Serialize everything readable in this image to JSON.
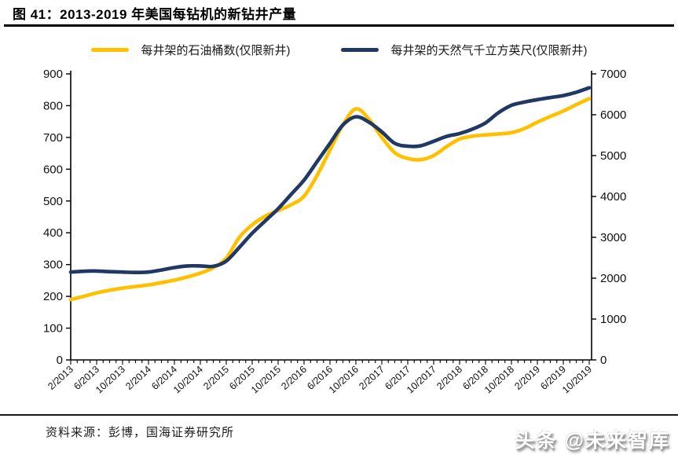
{
  "header": {
    "title": "图 41：2013-2019 年美国每钻机的新钻井产量"
  },
  "legend": [
    {
      "label": "每井架的石油桶数(仅限新井)",
      "color": "#FFC000"
    },
    {
      "label": "每井架的天然气千立方英尺(仅限新井)",
      "color": "#1F3864"
    }
  ],
  "footer": {
    "source": "资料来源：彭博，国海证券研究所",
    "watermark": "头条 @未来智库"
  },
  "chart_data": {
    "type": "line",
    "title": "2013-2019 年美国每钻机的新钻井产量",
    "grid": false,
    "legend_position": "top",
    "x_step_months": 2,
    "x": [
      "2/2013",
      "4/2013",
      "6/2013",
      "8/2013",
      "10/2013",
      "12/2013",
      "2/2014",
      "4/2014",
      "6/2014",
      "8/2014",
      "10/2014",
      "12/2014",
      "2/2015",
      "4/2015",
      "6/2015",
      "8/2015",
      "10/2015",
      "12/2015",
      "2/2016",
      "4/2016",
      "6/2016",
      "8/2016",
      "10/2016",
      "12/2016",
      "2/2017",
      "4/2017",
      "6/2017",
      "8/2017",
      "10/2017",
      "12/2017",
      "2/2018",
      "4/2018",
      "6/2018",
      "8/2018",
      "10/2018",
      "12/2018",
      "2/2019",
      "4/2019",
      "6/2019",
      "8/2019",
      "10/2019"
    ],
    "x_tick_labels": [
      "2/2013",
      "6/2013",
      "10/2013",
      "2/2014",
      "6/2014",
      "10/2014",
      "2/2015",
      "6/2015",
      "10/2015",
      "2/2016",
      "6/2016",
      "10/2016",
      "2/2017",
      "6/2017",
      "10/2017",
      "2/2018",
      "6/2018",
      "10/2018",
      "2/2019",
      "6/2019",
      "10/2019"
    ],
    "series": [
      {
        "name": "每井架的石油桶数(仅限新井)",
        "axis": "left",
        "color": "#FFC000",
        "values": [
          190,
          200,
          211,
          219,
          226,
          231,
          236,
          243,
          251,
          261,
          273,
          290,
          320,
          385,
          425,
          452,
          470,
          488,
          515,
          580,
          660,
          740,
          790,
          758,
          700,
          652,
          634,
          630,
          643,
          671,
          695,
          704,
          708,
          711,
          715,
          728,
          748,
          766,
          783,
          803,
          822
        ]
      },
      {
        "name": "每井架的天然气千立方英尺(仅限新井)",
        "axis": "right",
        "color": "#1F3864",
        "values": [
          2150,
          2170,
          2175,
          2160,
          2150,
          2140,
          2150,
          2200,
          2260,
          2300,
          2300,
          2290,
          2420,
          2750,
          3100,
          3400,
          3700,
          4050,
          4400,
          4850,
          5300,
          5750,
          5950,
          5820,
          5580,
          5300,
          5230,
          5240,
          5350,
          5470,
          5540,
          5650,
          5800,
          6050,
          6230,
          6310,
          6370,
          6420,
          6470,
          6550,
          6660
        ]
      }
    ],
    "left_axis": {
      "min": 0,
      "max": 900,
      "step": 100,
      "ticks": [
        0,
        100,
        200,
        300,
        400,
        500,
        600,
        700,
        800,
        900
      ]
    },
    "right_axis": {
      "min": 0,
      "max": 7000,
      "step": 1000,
      "ticks": [
        0,
        1000,
        2000,
        3000,
        4000,
        5000,
        6000,
        7000
      ]
    }
  }
}
